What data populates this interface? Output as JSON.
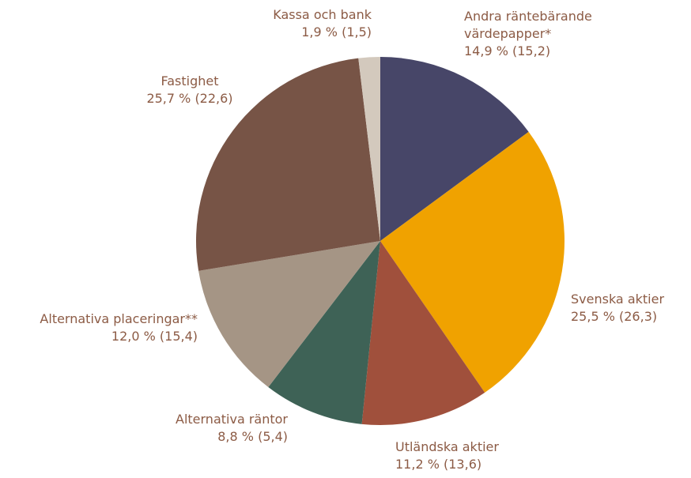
{
  "chart_data": {
    "type": "pie",
    "categories": [
      "Andra räntebärande värdepapper*",
      "Svenska aktier",
      "Utländska aktier",
      "Alternativa räntor",
      "Alternativa placeringar**",
      "Fastighet",
      "Kassa och bank"
    ],
    "values": [
      14.9,
      25.5,
      11.2,
      8.8,
      12.0,
      25.7,
      1.9
    ],
    "value_labels": [
      "14,9 % (15,2)",
      "25,5 % (26,3)",
      "11,2 % (13,6)",
      "8,8 % (5,4)",
      "12,0 % (15,4)",
      "25,7 % (22,6)",
      "1,9 % (1,5)"
    ],
    "colors": [
      "#474668",
      "#f0a200",
      "#a0503c",
      "#3e6256",
      "#a59585",
      "#775446",
      "#d3c9bd"
    ]
  }
}
